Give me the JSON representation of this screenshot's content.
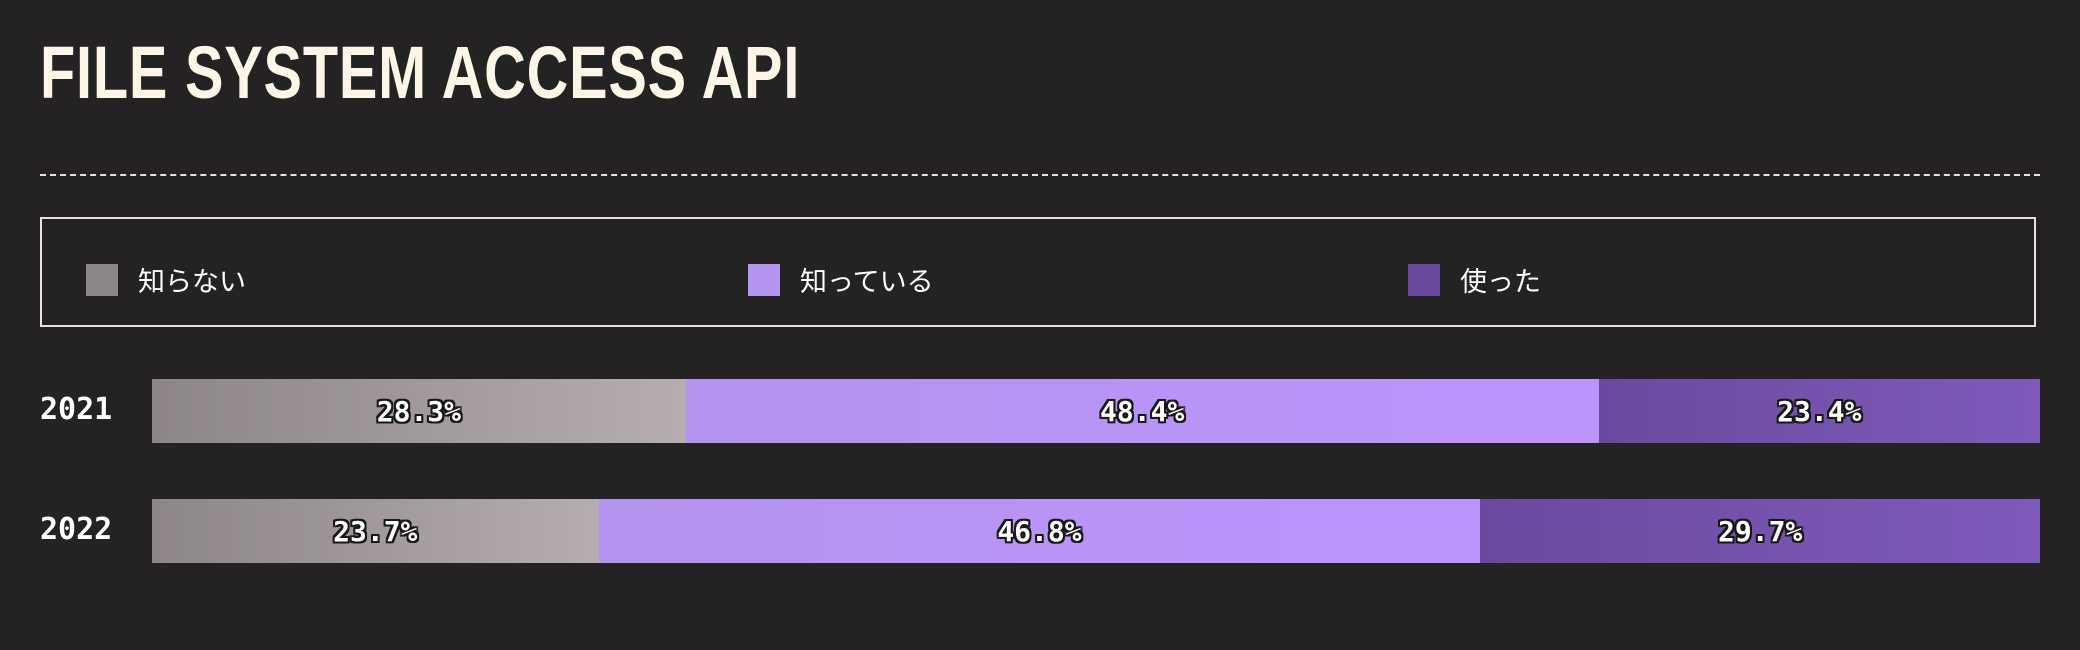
{
  "chart_data": {
    "type": "bar",
    "orientation": "horizontal",
    "stacked": true,
    "title": "FILE SYSTEM ACCESS API",
    "categories": [
      "2021",
      "2022"
    ],
    "series": [
      {
        "name": "知らない",
        "values": [
          28.3,
          23.7
        ],
        "labels": [
          "28.3%",
          "23.7%"
        ],
        "color": "#8c8589",
        "color_end": "#b5adaf"
      },
      {
        "name": "知っている",
        "values": [
          48.4,
          46.8
        ],
        "labels": [
          "48.4%",
          "46.8%"
        ],
        "color": "#b394ee",
        "color_end": "#bb94fc"
      },
      {
        "name": "使った",
        "values": [
          23.4,
          29.7
        ],
        "labels": [
          "23.4%",
          "29.7%"
        ],
        "color": "#6a4a9f",
        "color_end": "#7e5bbb"
      }
    ],
    "xlim": [
      0,
      100
    ],
    "legend": "top",
    "grid": false
  }
}
